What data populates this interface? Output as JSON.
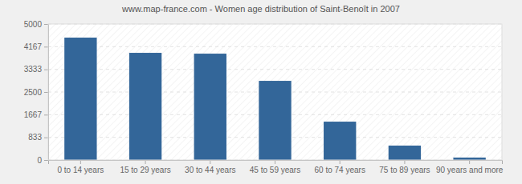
{
  "chart_data": {
    "type": "bar",
    "title": "www.map-france.com - Women age distribution of Saint-Benoît in 2007",
    "categories": [
      "0 to 14 years",
      "15 to 29 years",
      "30 to 44 years",
      "45 to 59 years",
      "60 to 74 years",
      "75 to 89 years",
      "90 years and more"
    ],
    "values": [
      4500,
      3940,
      3910,
      2910,
      1410,
      530,
      90
    ],
    "color": "#336699",
    "ylim": [
      0,
      5000
    ],
    "yticks": [
      0,
      833,
      1667,
      2500,
      3333,
      4167,
      5000
    ],
    "grid": true
  }
}
